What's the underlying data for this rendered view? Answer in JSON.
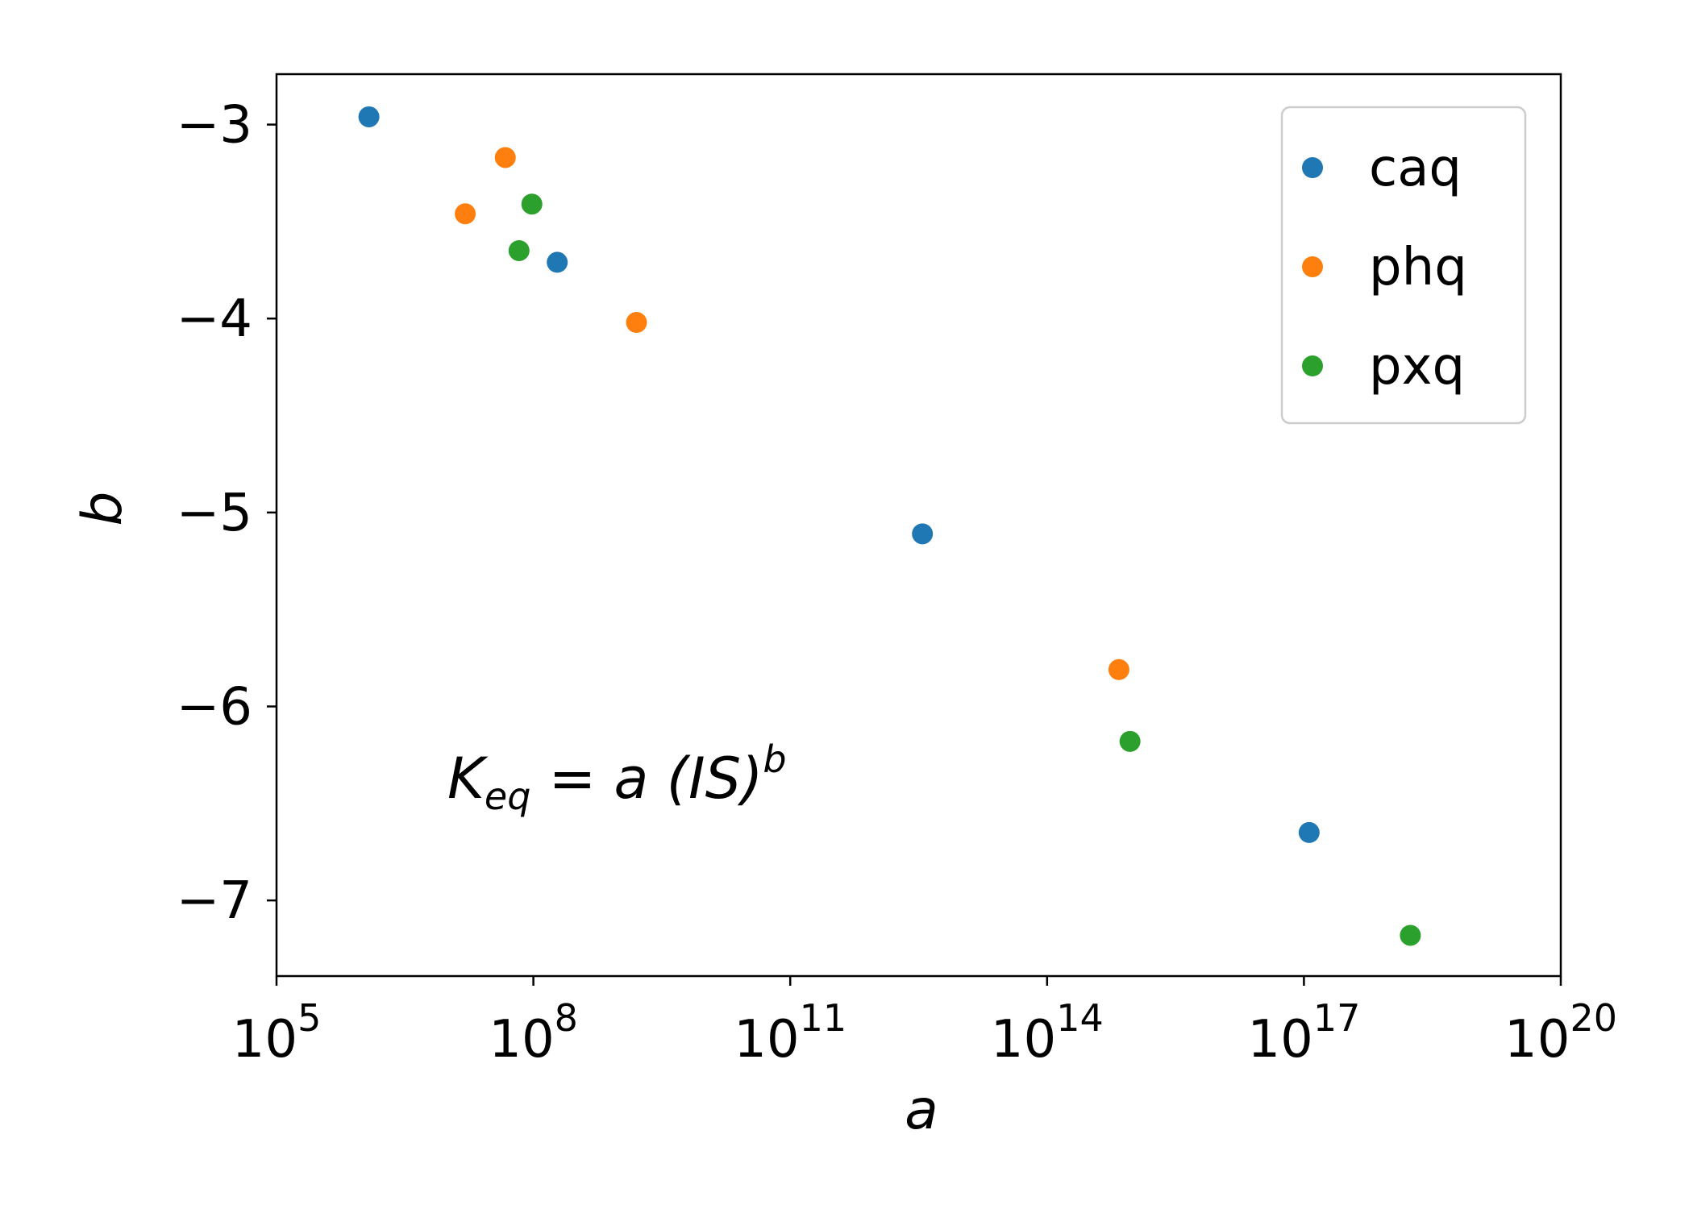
{
  "chart_data": {
    "type": "scatter",
    "xscale": "log",
    "xlabel": "a",
    "ylabel": "b",
    "xlim": [
      100000.0,
      1e+20
    ],
    "ylim": [
      -7.39,
      -2.74
    ],
    "grid": false,
    "legend_position": "top-right",
    "x_ticks": [
      {
        "value": 100000.0,
        "base": "10",
        "exp": "5"
      },
      {
        "value": 100000000.0,
        "base": "10",
        "exp": "8"
      },
      {
        "value": 100000000000.0,
        "base": "10",
        "exp": "11"
      },
      {
        "value": 100000000000000.0,
        "base": "10",
        "exp": "14"
      },
      {
        "value": 1e+17,
        "base": "10",
        "exp": "17"
      },
      {
        "value": 1e+20,
        "base": "10",
        "exp": "20"
      }
    ],
    "y_ticks": [
      {
        "value": -3,
        "label": "−3"
      },
      {
        "value": -4,
        "label": "−4"
      },
      {
        "value": -5,
        "label": "−5"
      },
      {
        "value": -6,
        "label": "−6"
      },
      {
        "value": -7,
        "label": "−7"
      }
    ],
    "series": [
      {
        "name": "caq",
        "color": "#1f77b4",
        "points": [
          [
            1200000.0,
            -2.96
          ],
          [
            190000000.0,
            -3.71
          ],
          [
            3500000000000.0,
            -5.11
          ],
          [
            1.15e+17,
            -6.65
          ]
        ]
      },
      {
        "name": "phq",
        "color": "#ff7f0e",
        "points": [
          [
            16000000.0,
            -3.46
          ],
          [
            47000000.0,
            -3.17
          ],
          [
            1600000000.0,
            -4.02
          ],
          [
            690000000000000.0,
            -5.81
          ]
        ]
      },
      {
        "name": "pxq",
        "color": "#2ca02c",
        "points": [
          [
            68000000.0,
            -3.65
          ],
          [
            96000000.0,
            -3.41
          ],
          [
            930000000000000.0,
            -6.18
          ],
          [
            1.75e+18,
            -7.18
          ]
        ]
      }
    ],
    "annotation": {
      "prefix": "K",
      "sub": "eq",
      "middle": " = a (IS)",
      "sup": "b"
    }
  }
}
